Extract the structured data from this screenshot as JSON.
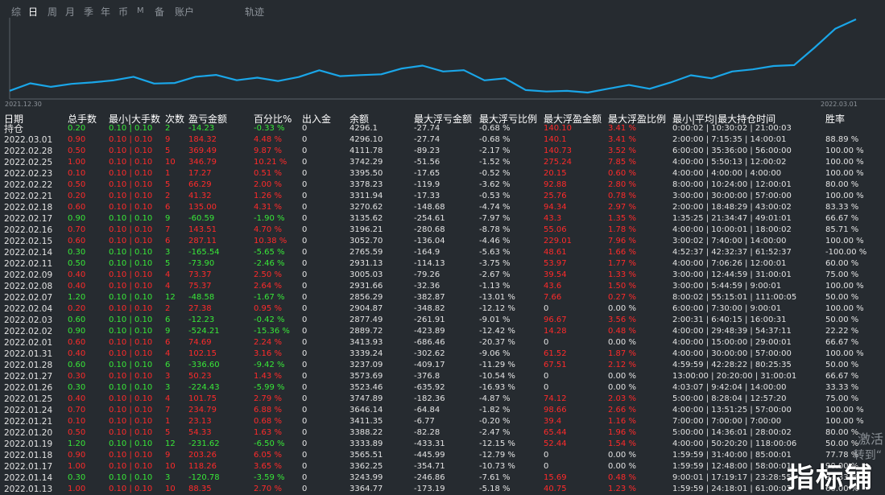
{
  "tabs": [
    {
      "label": "综",
      "active": false,
      "small": false
    },
    {
      "label": "日",
      "active": true,
      "small": false
    },
    {
      "label": "周",
      "active": false,
      "small": false
    },
    {
      "label": "月",
      "active": false,
      "small": false
    },
    {
      "label": "季",
      "active": false,
      "small": false
    },
    {
      "label": "年",
      "active": false,
      "small": false
    },
    {
      "label": "币",
      "active": false,
      "small": false
    },
    {
      "label": "M",
      "active": false,
      "small": true
    },
    {
      "label": "备",
      "active": false,
      "small": false
    },
    {
      "label": "账户",
      "active": false,
      "small": false
    },
    {
      "label": "轨迹",
      "active": false,
      "small": false
    }
  ],
  "chart_data": {
    "type": "line",
    "x_start": "2021.12.30",
    "x_end": "2022.03.01",
    "line_color": "#1aa6e8",
    "values": [
      2890.5,
      3037.7,
      2969.4,
      3027.2,
      3056.1,
      3095.1,
      3166.7,
      3033.2,
      3044.5,
      3167.2,
      3202.6,
      3097.9,
      3149.6,
      3082.8,
      3161.7,
      3294.8,
      3178.5,
      3199.9,
      3215.5,
      3330.1,
      3385.7,
      3270.1,
      3296.2,
      3097.1,
      3134.9,
      2904.9,
      2877.5,
      2889.7,
      2856.3,
      2931.7,
      3005.0,
      2931.1,
      3052.7,
      3196.2,
      3135.6,
      3270.6,
      3311.9,
      3378.2,
      3395.5,
      3742.3,
      4111.8,
      4296.1
    ]
  },
  "headers": {
    "date": "日期",
    "total": "总手数",
    "minmax": "最小|大手数",
    "count": "次数",
    "pnl": "盈亏金额",
    "pct": "百分比%",
    "io": "出入金",
    "bal": "余额",
    "mfl": "最大浮亏金额",
    "mflr": "最大浮亏比例",
    "mfp": "最大浮盈金额",
    "mfpr": "最大浮盈比例",
    "time": "最小|平均|最大持仓时间",
    "win": "胜率"
  },
  "rows": [
    {
      "date": "持仓",
      "total": "0.20",
      "minmax": "0.10 | 0.10",
      "count": "2",
      "pnl": "-14.23",
      "pct": "-0.33 %",
      "io": "0",
      "bal": "4296.1",
      "mfl": "-27.74",
      "mflr": "-0.68 %",
      "mfp": "140.10",
      "mfpr": "3.41 %",
      "time": "0:00:02 | 10:30:02 | 21:00:03",
      "win": "",
      "c": "g",
      "fp": "r",
      "fpr": "r"
    },
    {
      "date": "2022.03.01",
      "total": "0.90",
      "minmax": "0.10 | 0.10",
      "count": "9",
      "pnl": "184.32",
      "pct": "4.48 %",
      "io": "0",
      "bal": "4296.10",
      "mfl": "-27.74",
      "mflr": "-0.68 %",
      "mfp": "140.1",
      "mfpr": "3.41 %",
      "time": "2:00:00 | 7:15:35 | 14:00:01",
      "win": "88.89 %",
      "c": "r",
      "fp": "r",
      "fpr": "r"
    },
    {
      "date": "2022.02.28",
      "total": "0.50",
      "minmax": "0.10 | 0.10",
      "count": "5",
      "pnl": "369.49",
      "pct": "9.87 %",
      "io": "0",
      "bal": "4111.78",
      "mfl": "-89.23",
      "mflr": "-2.17 %",
      "mfp": "140.73",
      "mfpr": "3.52 %",
      "time": "6:00:00 | 35:36:00 | 56:00:00",
      "win": "100.00 %",
      "c": "r",
      "fp": "r",
      "fpr": "r"
    },
    {
      "date": "2022.02.25",
      "total": "1.00",
      "minmax": "0.10 | 0.10",
      "count": "10",
      "pnl": "346.79",
      "pct": "10.21 %",
      "io": "0",
      "bal": "3742.29",
      "mfl": "-51.56",
      "mflr": "-1.52 %",
      "mfp": "275.24",
      "mfpr": "7.85 %",
      "time": "4:00:00 | 5:50:13 | 12:00:02",
      "win": "100.00 %",
      "c": "r",
      "fp": "r",
      "fpr": "r"
    },
    {
      "date": "2022.02.23",
      "total": "0.10",
      "minmax": "0.10 | 0.10",
      "count": "1",
      "pnl": "17.27",
      "pct": "0.51 %",
      "io": "0",
      "bal": "3395.50",
      "mfl": "-17.65",
      "mflr": "-0.52 %",
      "mfp": "20.15",
      "mfpr": "0.60 %",
      "time": "4:00:00 | 4:00:00 | 4:00:00",
      "win": "100.00 %",
      "c": "r",
      "fp": "r",
      "fpr": "r"
    },
    {
      "date": "2022.02.22",
      "total": "0.50",
      "minmax": "0.10 | 0.10",
      "count": "5",
      "pnl": "66.29",
      "pct": "2.00 %",
      "io": "0",
      "bal": "3378.23",
      "mfl": "-119.9",
      "mflr": "-3.62 %",
      "mfp": "92.88",
      "mfpr": "2.80 %",
      "time": "8:00:00 | 10:24:00 | 12:00:01",
      "win": "80.00 %",
      "c": "r",
      "fp": "r",
      "fpr": "r"
    },
    {
      "date": "2022.02.21",
      "total": "0.20",
      "minmax": "0.10 | 0.10",
      "count": "2",
      "pnl": "41.32",
      "pct": "1.26 %",
      "io": "0",
      "bal": "3311.94",
      "mfl": "-17.33",
      "mflr": "-0.53 %",
      "mfp": "25.76",
      "mfpr": "0.78 %",
      "time": "3:00:00 | 30:00:00 | 57:00:00",
      "win": "100.00 %",
      "c": "r",
      "fp": "r",
      "fpr": "r"
    },
    {
      "date": "2022.02.18",
      "total": "0.60",
      "minmax": "0.10 | 0.10",
      "count": "6",
      "pnl": "135.00",
      "pct": "4.31 %",
      "io": "0",
      "bal": "3270.62",
      "mfl": "-148.68",
      "mflr": "-4.74 %",
      "mfp": "94.34",
      "mfpr": "2.97 %",
      "time": "2:00:00 | 18:48:29 | 43:00:02",
      "win": "83.33 %",
      "c": "r",
      "fp": "r",
      "fpr": "r"
    },
    {
      "date": "2022.02.17",
      "total": "0.90",
      "minmax": "0.10 | 0.10",
      "count": "9",
      "pnl": "-60.59",
      "pct": "-1.90 %",
      "io": "0",
      "bal": "3135.62",
      "mfl": "-254.61",
      "mflr": "-7.97 %",
      "mfp": "43.3",
      "mfpr": "1.35 %",
      "time": "1:35:25 | 21:34:47 | 49:01:01",
      "win": "66.67 %",
      "c": "g",
      "fp": "r",
      "fpr": "r"
    },
    {
      "date": "2022.02.16",
      "total": "0.70",
      "minmax": "0.10 | 0.10",
      "count": "7",
      "pnl": "143.51",
      "pct": "4.70 %",
      "io": "0",
      "bal": "3196.21",
      "mfl": "-280.68",
      "mflr": "-8.78 %",
      "mfp": "55.06",
      "mfpr": "1.78 %",
      "time": "4:00:00 | 10:00:01 | 18:00:02",
      "win": "85.71 %",
      "c": "r",
      "fp": "r",
      "fpr": "r"
    },
    {
      "date": "2022.02.15",
      "total": "0.60",
      "minmax": "0.10 | 0.10",
      "count": "6",
      "pnl": "287.11",
      "pct": "10.38 %",
      "io": "0",
      "bal": "3052.70",
      "mfl": "-136.04",
      "mflr": "-4.46 %",
      "mfp": "229.01",
      "mfpr": "7.96 %",
      "time": "3:00:02 | 7:40:00 | 14:00:00",
      "win": "100.00 %",
      "c": "r",
      "fp": "r",
      "fpr": "r"
    },
    {
      "date": "2022.02.14",
      "total": "0.30",
      "minmax": "0.10 | 0.10",
      "count": "3",
      "pnl": "-165.54",
      "pct": "-5.65 %",
      "io": "0",
      "bal": "2765.59",
      "mfl": "-164.9",
      "mflr": "-5.63 %",
      "mfp": "48.61",
      "mfpr": "1.66 %",
      "time": "4:52:37 | 42:32:37 | 61:52:37",
      "win": "-100.00 %",
      "c": "g",
      "fp": "r",
      "fpr": "r"
    },
    {
      "date": "2022.02.11",
      "total": "0.50",
      "minmax": "0.10 | 0.10",
      "count": "5",
      "pnl": "-73.90",
      "pct": "-2.46 %",
      "io": "0",
      "bal": "2931.13",
      "mfl": "-114.13",
      "mflr": "-3.75 %",
      "mfp": "53.97",
      "mfpr": "1.77 %",
      "time": "4:00:00 | 7:06:26 | 12:00:01",
      "win": "60.00 %",
      "c": "g",
      "fp": "r",
      "fpr": "r"
    },
    {
      "date": "2022.02.09",
      "total": "0.40",
      "minmax": "0.10 | 0.10",
      "count": "4",
      "pnl": "73.37",
      "pct": "2.50 %",
      "io": "0",
      "bal": "3005.03",
      "mfl": "-79.26",
      "mflr": "-2.67 %",
      "mfp": "39.54",
      "mfpr": "1.33 %",
      "time": "3:00:00 | 12:44:59 | 31:00:01",
      "win": "75.00 %",
      "c": "r",
      "fp": "r",
      "fpr": "r"
    },
    {
      "date": "2022.02.08",
      "total": "0.40",
      "minmax": "0.10 | 0.10",
      "count": "4",
      "pnl": "75.37",
      "pct": "2.64 %",
      "io": "0",
      "bal": "2931.66",
      "mfl": "-32.36",
      "mflr": "-1.13 %",
      "mfp": "43.6",
      "mfpr": "1.50 %",
      "time": "3:00:00 | 5:44:59 | 9:00:01",
      "win": "100.00 %",
      "c": "r",
      "fp": "r",
      "fpr": "r"
    },
    {
      "date": "2022.02.07",
      "total": "1.20",
      "minmax": "0.10 | 0.10",
      "count": "12",
      "pnl": "-48.58",
      "pct": "-1.67 %",
      "io": "0",
      "bal": "2856.29",
      "mfl": "-382.87",
      "mflr": "-13.01 %",
      "mfp": "7.66",
      "mfpr": "0.27 %",
      "time": "8:00:02 | 55:15:01 | 111:00:05",
      "win": "50.00 %",
      "c": "g",
      "fp": "r",
      "fpr": "r"
    },
    {
      "date": "2022.02.04",
      "total": "0.20",
      "minmax": "0.10 | 0.10",
      "count": "2",
      "pnl": "27.38",
      "pct": "0.95 %",
      "io": "0",
      "bal": "2904.87",
      "mfl": "-348.82",
      "mflr": "-12.12 %",
      "mfp": "0",
      "mfpr": "0.00 %",
      "time": "6:00:00 | 7:30:00 | 9:00:01",
      "win": "100.00 %",
      "c": "r",
      "fp": "w",
      "fpr": "w"
    },
    {
      "date": "2022.02.03",
      "total": "0.60",
      "minmax": "0.10 | 0.10",
      "count": "6",
      "pnl": "-12.23",
      "pct": "-0.42 %",
      "io": "0",
      "bal": "2877.49",
      "mfl": "-261.91",
      "mflr": "-9.01 %",
      "mfp": "96.67",
      "mfpr": "3.56 %",
      "time": "2:00:31 | 6:40:15 | 16:00:31",
      "win": "50.00 %",
      "c": "g",
      "fp": "r",
      "fpr": "r"
    },
    {
      "date": "2022.02.02",
      "total": "0.90",
      "minmax": "0.10 | 0.10",
      "count": "9",
      "pnl": "-524.21",
      "pct": "-15.36 %",
      "io": "0",
      "bal": "2889.72",
      "mfl": "-423.89",
      "mflr": "-12.42 %",
      "mfp": "14.28",
      "mfpr": "0.48 %",
      "time": "4:00:00 | 29:48:39 | 54:37:11",
      "win": "22.22 %",
      "c": "g",
      "fp": "r",
      "fpr": "r"
    },
    {
      "date": "2022.02.01",
      "total": "0.60",
      "minmax": "0.10 | 0.10",
      "count": "6",
      "pnl": "74.69",
      "pct": "2.24 %",
      "io": "0",
      "bal": "3413.93",
      "mfl": "-686.46",
      "mflr": "-20.37 %",
      "mfp": "0",
      "mfpr": "0.00 %",
      "time": "4:00:00 | 15:00:00 | 29:00:01",
      "win": "66.67 %",
      "c": "r",
      "fp": "w",
      "fpr": "w"
    },
    {
      "date": "2022.01.31",
      "total": "0.40",
      "minmax": "0.10 | 0.10",
      "count": "4",
      "pnl": "102.15",
      "pct": "3.16 %",
      "io": "0",
      "bal": "3339.24",
      "mfl": "-302.62",
      "mflr": "-9.06 %",
      "mfp": "61.52",
      "mfpr": "1.87 %",
      "time": "4:00:00 | 30:00:00 | 57:00:00",
      "win": "100.00 %",
      "c": "r",
      "fp": "r",
      "fpr": "r"
    },
    {
      "date": "2022.01.28",
      "total": "0.60",
      "minmax": "0.10 | 0.10",
      "count": "6",
      "pnl": "-336.60",
      "pct": "-9.42 %",
      "io": "0",
      "bal": "3237.09",
      "mfl": "-409.17",
      "mflr": "-11.29 %",
      "mfp": "67.51",
      "mfpr": "2.12 %",
      "time": "4:59:59 | 42:28:22 | 80:25:35",
      "win": "50.00 %",
      "c": "g",
      "fp": "r",
      "fpr": "r"
    },
    {
      "date": "2022.01.27",
      "total": "0.30",
      "minmax": "0.10 | 0.10",
      "count": "3",
      "pnl": "50.23",
      "pct": "1.43 %",
      "io": "0",
      "bal": "3573.69",
      "mfl": "-376.8",
      "mflr": "-10.54 %",
      "mfp": "0",
      "mfpr": "0.00 %",
      "time": "13:00:00 | 20:20:00 | 31:00:01",
      "win": "66.67 %",
      "c": "r",
      "fp": "w",
      "fpr": "w"
    },
    {
      "date": "2022.01.26",
      "total": "0.30",
      "minmax": "0.10 | 0.10",
      "count": "3",
      "pnl": "-224.43",
      "pct": "-5.99 %",
      "io": "0",
      "bal": "3523.46",
      "mfl": "-635.92",
      "mflr": "-16.93 %",
      "mfp": "0",
      "mfpr": "0.00 %",
      "time": "4:03:07 | 9:42:04 | 14:00:00",
      "win": "33.33 %",
      "c": "g",
      "fp": "w",
      "fpr": "w"
    },
    {
      "date": "2022.01.25",
      "total": "0.40",
      "minmax": "0.10 | 0.10",
      "count": "4",
      "pnl": "101.75",
      "pct": "2.79 %",
      "io": "0",
      "bal": "3747.89",
      "mfl": "-182.36",
      "mflr": "-4.87 %",
      "mfp": "74.12",
      "mfpr": "2.03 %",
      "time": "5:00:00 | 8:28:04 | 12:57:20",
      "win": "75.00 %",
      "c": "r",
      "fp": "r",
      "fpr": "r"
    },
    {
      "date": "2022.01.24",
      "total": "0.70",
      "minmax": "0.10 | 0.10",
      "count": "7",
      "pnl": "234.79",
      "pct": "6.88 %",
      "io": "0",
      "bal": "3646.14",
      "mfl": "-64.84",
      "mflr": "-1.82 %",
      "mfp": "98.66",
      "mfpr": "2.66 %",
      "time": "4:00:00 | 13:51:25 | 57:00:00",
      "win": "100.00 %",
      "c": "r",
      "fp": "r",
      "fpr": "r"
    },
    {
      "date": "2022.01.21",
      "total": "0.10",
      "minmax": "0.10 | 0.10",
      "count": "1",
      "pnl": "23.13",
      "pct": "0.68 %",
      "io": "0",
      "bal": "3411.35",
      "mfl": "-6.77",
      "mflr": "-0.20 %",
      "mfp": "39.4",
      "mfpr": "1.16 %",
      "time": "7:00:00 | 7:00:00 | 7:00:00",
      "win": "100.00 %",
      "c": "r",
      "fp": "r",
      "fpr": "r"
    },
    {
      "date": "2022.01.20",
      "total": "0.50",
      "minmax": "0.10 | 0.10",
      "count": "5",
      "pnl": "54.33",
      "pct": "1.63 %",
      "io": "0",
      "bal": "3388.22",
      "mfl": "-82.28",
      "mflr": "-2.47 %",
      "mfp": "65.44",
      "mfpr": "1.96 %",
      "time": "5:00:00 | 14:36:01 | 28:00:02",
      "win": "80.00 %",
      "c": "r",
      "fp": "r",
      "fpr": "r"
    },
    {
      "date": "2022.01.19",
      "total": "1.20",
      "minmax": "0.10 | 0.10",
      "count": "12",
      "pnl": "-231.62",
      "pct": "-6.50 %",
      "io": "0",
      "bal": "3333.89",
      "mfl": "-433.31",
      "mflr": "-12.15 %",
      "mfp": "52.44",
      "mfpr": "1.54 %",
      "time": "4:00:00 | 50:20:20 | 118:00:06",
      "win": "50.00 %",
      "c": "g",
      "fp": "r",
      "fpr": "r"
    },
    {
      "date": "2022.01.18",
      "total": "0.90",
      "minmax": "0.10 | 0.10",
      "count": "9",
      "pnl": "203.26",
      "pct": "6.05 %",
      "io": "0",
      "bal": "3565.51",
      "mfl": "-445.99",
      "mflr": "-12.79 %",
      "mfp": "0",
      "mfpr": "0.00 %",
      "time": "1:59:59 | 31:40:00 | 85:00:01",
      "win": "77.78 %",
      "c": "r",
      "fp": "w",
      "fpr": "w"
    },
    {
      "date": "2022.01.17",
      "total": "1.00",
      "minmax": "0.10 | 0.10",
      "count": "10",
      "pnl": "118.26",
      "pct": "3.65 %",
      "io": "0",
      "bal": "3362.25",
      "mfl": "-354.71",
      "mflr": "-10.73 %",
      "mfp": "0",
      "mfpr": "0.00 %",
      "time": "1:59:59 | 12:48:00 | 58:00:01",
      "win": "90.00 %",
      "c": "r",
      "fp": "w",
      "fpr": "w"
    },
    {
      "date": "2022.01.14",
      "total": "0.30",
      "minmax": "0.10 | 0.10",
      "count": "3",
      "pnl": "-120.78",
      "pct": "-3.59 %",
      "io": "0",
      "bal": "3243.99",
      "mfl": "-246.86",
      "mflr": "-7.61 %",
      "mfp": "15.69",
      "mfpr": "0.48 %",
      "time": "9:00:01 | 17:19:17 | 23:28:55",
      "win": "33.33 %",
      "c": "g",
      "fp": "r",
      "fpr": "r"
    },
    {
      "date": "2022.01.13",
      "total": "1.00",
      "minmax": "0.10 | 0.10",
      "count": "10",
      "pnl": "88.35",
      "pct": "2.70 %",
      "io": "0",
      "bal": "3364.77",
      "mfl": "-173.19",
      "mflr": "-5.18 %",
      "mfp": "40.75",
      "mfpr": "1.23 %",
      "time": "1:59:59 | 24:18:01 | 61:00:02",
      "win": "60.00 %",
      "c": "r",
      "fp": "r",
      "fpr": "r"
    }
  ],
  "watermark": {
    "line1": "激活",
    "line2": "转到“",
    "logo": "指标铺"
  }
}
